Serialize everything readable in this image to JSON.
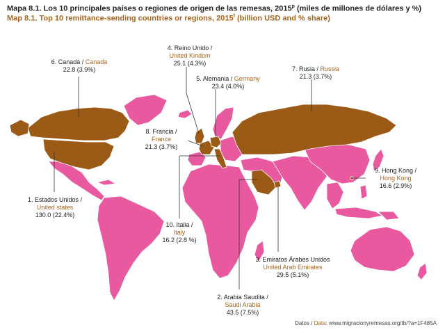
{
  "title": {
    "es": "Mapa 8.1. Los 10 principales países o regiones de origen de las remesas, 2015",
    "es_sup": "p",
    "es_units": " (miles de millones de dólares y %)",
    "en": "Map 8.1. Top 10 remittance-sending countries or regions, 2015",
    "en_sup": "f",
    "en_units": " (billion USD and % share)"
  },
  "colors": {
    "highlight": "#9b5b17",
    "other": "#e8599f",
    "english_text": "#a8651f",
    "leader_line": "#333333"
  },
  "map_data": {
    "type": "choropleth",
    "regions": [
      {
        "rank": "1.",
        "es": "Estados Unidos /",
        "en": "United states",
        "value": "130.0 (22.4%)"
      },
      {
        "rank": "2.",
        "es": "Arabia Saudita /",
        "en": "Saudi Arabia",
        "value": "43.5 (7.5%)"
      },
      {
        "rank": "3.",
        "es": "Emiratos Árabes Unidos",
        "en": "United Arab Emirates",
        "value": "29.5 (5.1%)"
      },
      {
        "rank": "4.",
        "es": "Reino Unido /",
        "en": "United Kindom",
        "value": "25.1 (4.3%)"
      },
      {
        "rank": "5.",
        "es": "Alemania /",
        "en": "Germany",
        "value": "23.4 (4.0%)"
      },
      {
        "rank": "6.",
        "es": "Canadá /",
        "en": "Canada",
        "value": "22.8 (3.9%)"
      },
      {
        "rank": "7.",
        "es": "Rusia /",
        "en": "Russia",
        "value": "21.3 (3.7%)"
      },
      {
        "rank": "8.",
        "es": "Francia /",
        "en": "France",
        "value": "21.3 (3.7%)"
      },
      {
        "rank": "9.",
        "es": "Hong Kong /",
        "en": "Hong Kong",
        "value": "16.6 (2.9%)"
      },
      {
        "rank": "10.",
        "es": "Italia /",
        "en": "Italy",
        "value": "16.2 (2.8 %)"
      }
    ]
  },
  "source": {
    "label_es": "Datos / ",
    "label_en": "Data",
    "text": ": www.migracionyremesas.org/tb/?a=1F485A"
  }
}
